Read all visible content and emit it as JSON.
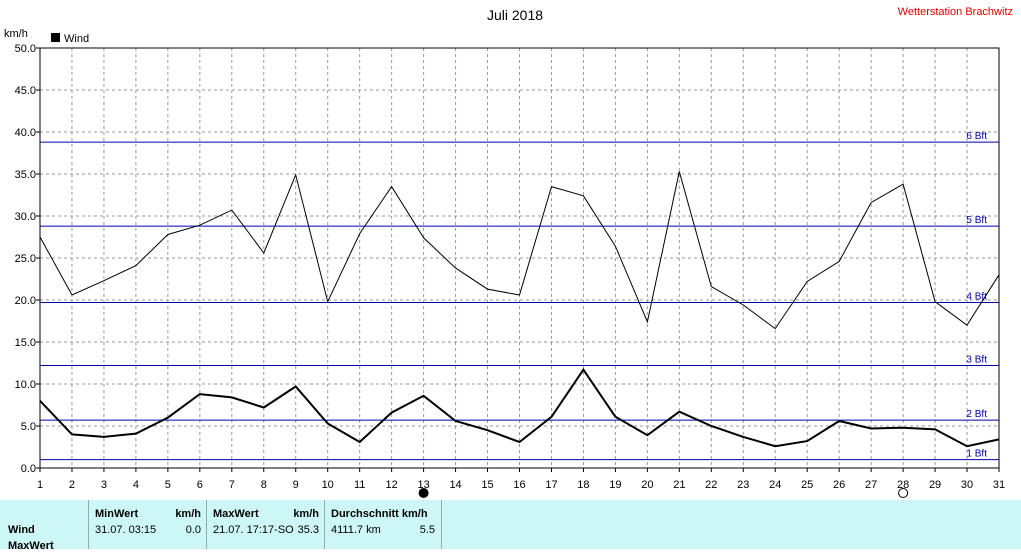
{
  "header": {
    "station": "Wetterstation Brachwitz"
  },
  "colors": {
    "line": "#000000",
    "bft_lines": "#0000aa",
    "grid": "#999999",
    "stats_bg": "#cdf7f7",
    "station": "#e00000"
  },
  "chart_data": {
    "type": "line",
    "title": "Juli 2018",
    "ylabel": "km/h",
    "legend": "Wind",
    "ylim": [
      0,
      50
    ],
    "yticks": [
      "0.0",
      "5.0",
      "10.0",
      "15.0",
      "20.0",
      "25.0",
      "30.0",
      "35.0",
      "40.0",
      "45.0",
      "50.0"
    ],
    "x": [
      1,
      2,
      3,
      4,
      5,
      6,
      7,
      8,
      9,
      10,
      11,
      12,
      13,
      14,
      15,
      16,
      17,
      18,
      19,
      20,
      21,
      22,
      23,
      24,
      25,
      26,
      27,
      28,
      29,
      30,
      31
    ],
    "series": [
      {
        "name": "Wind",
        "values": [
          8.0,
          4.0,
          3.7,
          4.1,
          6.0,
          8.8,
          8.4,
          7.2,
          9.7,
          5.3,
          3.1,
          6.6,
          8.6,
          5.6,
          4.5,
          3.1,
          6.1,
          11.7,
          6.1,
          3.9,
          6.7,
          5.0,
          3.7,
          2.6,
          3.2,
          5.6,
          4.7,
          4.8,
          4.6,
          2.6,
          3.4
        ]
      },
      {
        "name": "",
        "values": [
          27.5,
          20.6,
          22.3,
          24.1,
          27.8,
          28.9,
          30.7,
          25.6,
          34.9,
          19.8,
          27.9,
          33.5,
          27.4,
          23.8,
          21.3,
          20.6,
          33.5,
          32.4,
          26.4,
          17.4,
          35.3,
          21.6,
          19.4,
          16.6,
          22.2,
          24.6,
          31.6,
          33.8,
          19.8,
          17.0,
          23.0
        ]
      }
    ],
    "bft_lines": [
      {
        "label": "1 Bft",
        "value": 1.0
      },
      {
        "label": "2 Bft",
        "value": 5.7
      },
      {
        "label": "3 Bft",
        "value": 12.2
      },
      {
        "label": "4 Bft",
        "value": 19.7
      },
      {
        "label": "5 Bft",
        "value": 28.8
      },
      {
        "label": "6 Bft",
        "value": 38.8
      }
    ],
    "moon_phases": [
      {
        "day": 13,
        "phase": "new"
      },
      {
        "day": 28,
        "phase": "full"
      }
    ],
    "grid": true
  },
  "stats": {
    "row1_label": "Wind",
    "row2_label": "MaxWert",
    "min_header": "MinWert",
    "min_unit": "km/h",
    "min_time": "31.07.  03:15",
    "min_value": "0.0",
    "max_header": "MaxWert",
    "max_unit": "km/h",
    "max_time": "21.07.  17:17-SO",
    "max_value": "35.3",
    "avg_header": "Durchschnitt km/h",
    "avg_dist": "4111.7 km",
    "avg_value": "5.5"
  }
}
